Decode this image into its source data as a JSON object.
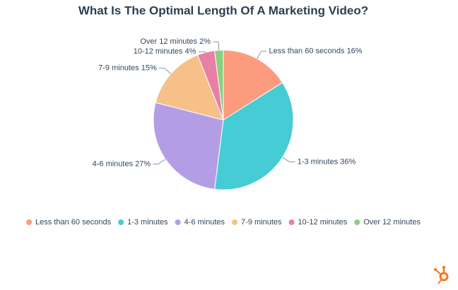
{
  "chart_data": {
    "type": "pie",
    "title": "What Is The Optimal Length Of A Marketing Video?",
    "categories": [
      "Less than 60 seconds",
      "1-3 minutes",
      "4-6 minutes",
      "7-9 minutes",
      "10-12 minutes",
      "Over 12 minutes"
    ],
    "values": [
      16,
      36,
      27,
      15,
      4,
      2
    ],
    "value_labels": [
      "16%",
      "36%",
      "27%",
      "15%",
      "4%",
      "2%"
    ],
    "colors": [
      "#fd9b7e",
      "#46ccd4",
      "#b39ee6",
      "#f6c088",
      "#e880a6",
      "#8ccf7e"
    ],
    "legend": "bottom"
  }
}
